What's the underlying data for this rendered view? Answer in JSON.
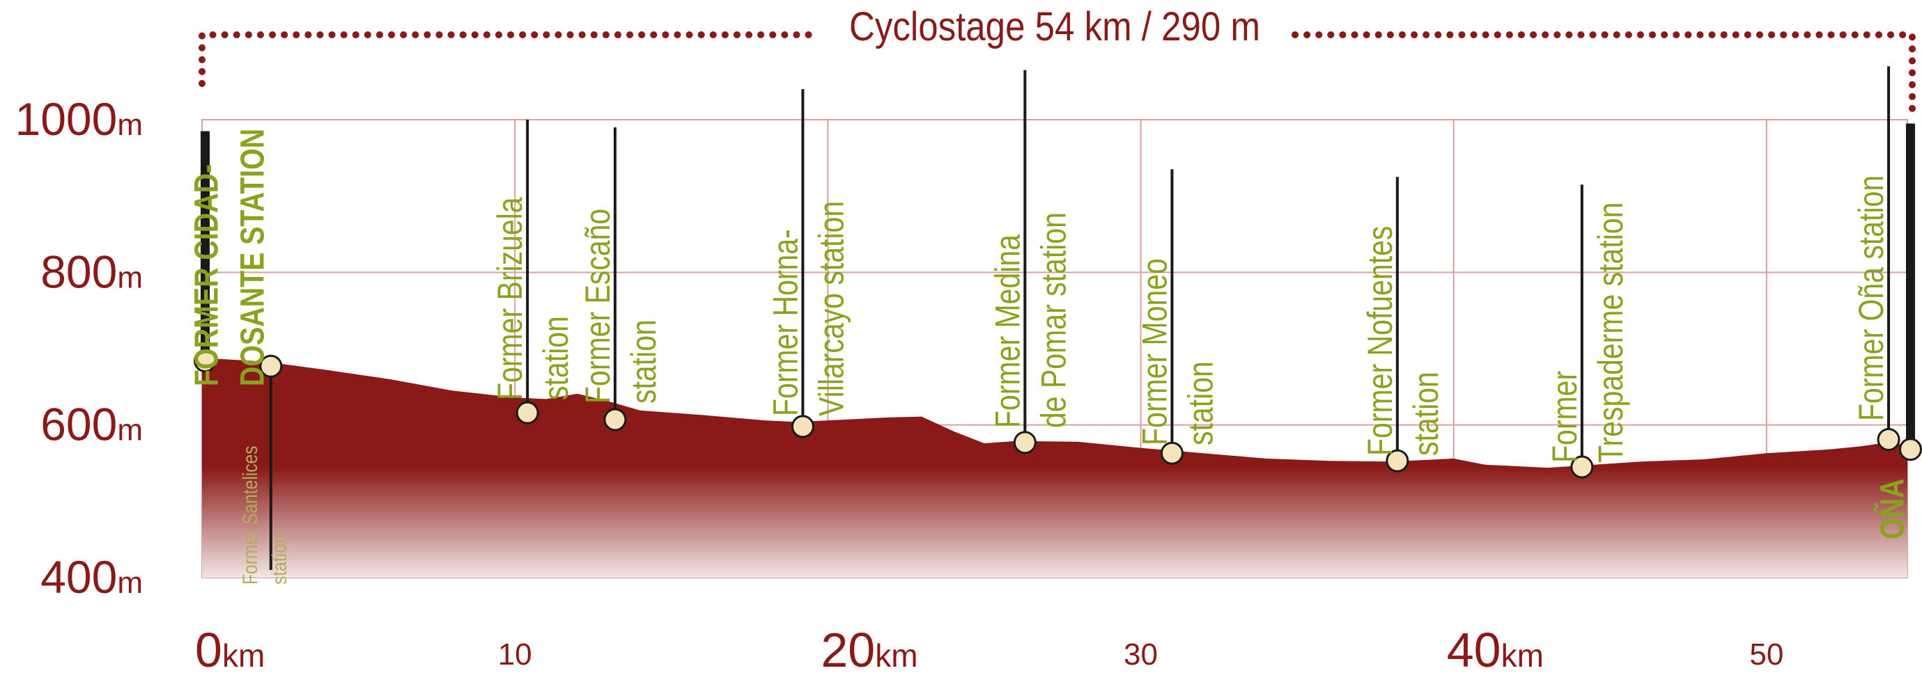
{
  "chart_data": {
    "type": "area",
    "title": "Cyclostage 54 km / 290 m",
    "xlabel": "",
    "ylabel": "",
    "xlim": [
      0,
      54.5
    ],
    "ylim": [
      400,
      1000
    ],
    "colors": {
      "area": "#8a1a17",
      "area_fade": "#f2e6e4",
      "grid": "#d9a0a0",
      "text": "#8a1a17",
      "label": "#8aa31f",
      "stem": "#1a1a1a",
      "marker_fill": "#f5e3bc"
    },
    "grid": true,
    "x_ticks": [
      {
        "value": 0,
        "number": "0",
        "unit": "km"
      },
      {
        "value": 10,
        "number": "10",
        "unit": ""
      },
      {
        "value": 20,
        "number": "20",
        "unit": "km"
      },
      {
        "value": 30,
        "number": "30",
        "unit": ""
      },
      {
        "value": 40,
        "number": "40",
        "unit": "km"
      },
      {
        "value": 50,
        "number": "50",
        "unit": ""
      }
    ],
    "y_ticks": [
      {
        "value": 400,
        "number": "400",
        "unit": "m"
      },
      {
        "value": 600,
        "number": "600",
        "unit": "m"
      },
      {
        "value": 800,
        "number": "800",
        "unit": "m"
      },
      {
        "value": 1000,
        "number": "1000",
        "unit": "m"
      }
    ],
    "profile": [
      [
        0,
        688
      ],
      [
        2,
        683
      ],
      [
        4,
        672
      ],
      [
        6,
        660
      ],
      [
        8,
        645
      ],
      [
        10,
        636
      ],
      [
        11,
        634
      ],
      [
        12,
        641
      ],
      [
        13,
        631
      ],
      [
        14,
        619
      ],
      [
        16,
        613
      ],
      [
        18,
        606
      ],
      [
        19,
        604
      ],
      [
        20,
        606
      ],
      [
        22,
        610
      ],
      [
        23,
        611
      ],
      [
        24,
        592
      ],
      [
        25,
        576
      ],
      [
        26,
        579
      ],
      [
        28,
        578
      ],
      [
        30,
        570
      ],
      [
        32,
        563
      ],
      [
        34,
        556
      ],
      [
        36,
        553
      ],
      [
        38,
        552
      ],
      [
        40,
        556
      ],
      [
        41,
        548
      ],
      [
        43,
        544
      ],
      [
        44.5,
        548
      ],
      [
        46,
        552
      ],
      [
        48,
        555
      ],
      [
        50,
        563
      ],
      [
        52,
        568
      ],
      [
        53,
        572
      ],
      [
        54,
        578
      ],
      [
        54.5,
        572
      ]
    ],
    "annotations": [
      {
        "x": 0.1,
        "elev": 684,
        "top": 985,
        "lines": [
          "FORMER CIDAD-",
          "DOSANTE STATION"
        ],
        "style": "caps",
        "lx": 18,
        "ly": 555,
        "bold": true
      },
      {
        "x": 2.2,
        "elev": 677,
        "top": 410,
        "lines": [
          "Former Santelices",
          "station"
        ],
        "style": "small",
        "lx": -20,
        "ly": 840,
        "bold": false
      },
      {
        "x": 10.4,
        "elev": 616,
        "top": 1000,
        "lines": [
          "Former Brizuela",
          "station"
        ],
        "style": "normal",
        "lx": -8,
        "ly": 575,
        "bold": false
      },
      {
        "x": 13.2,
        "elev": 607,
        "top": 990,
        "lines": [
          "Former Escaño",
          "station"
        ],
        "style": "normal",
        "lx": -8,
        "ly": 580,
        "bold": false
      },
      {
        "x": 19.2,
        "elev": 598,
        "top": 1040,
        "lines": [
          "Former Horna-",
          "Villarcayo station"
        ],
        "style": "normal",
        "lx": -8,
        "ly": 598,
        "bold": false
      },
      {
        "x": 26.3,
        "elev": 577,
        "top": 1065,
        "lines": [
          "Former Medina",
          "de Pomar station"
        ],
        "style": "normal",
        "lx": -8,
        "ly": 615,
        "bold": false
      },
      {
        "x": 31.0,
        "elev": 563,
        "top": 935,
        "lines": [
          "Former Moneo",
          "station"
        ],
        "style": "normal",
        "lx": -8,
        "ly": 640,
        "bold": false
      },
      {
        "x": 38.2,
        "elev": 553,
        "top": 925,
        "lines": [
          "Former Nofuentes",
          "station"
        ],
        "style": "normal",
        "lx": -8,
        "ly": 655,
        "bold": false
      },
      {
        "x": 44.1,
        "elev": 545,
        "top": 915,
        "lines": [
          "Former",
          "Trespaderme station"
        ],
        "style": "normal",
        "lx": -8,
        "ly": 665,
        "bold": false
      },
      {
        "x": 53.9,
        "elev": 581,
        "top": 1070,
        "lines": [
          "Former Oña station"
        ],
        "style": "normal",
        "lx": -8,
        "ly": 605,
        "bold": false
      },
      {
        "x": 54.6,
        "elev": 568,
        "top": 995,
        "lines": [
          "OÑA"
        ],
        "style": "caps",
        "lx": -10,
        "ly": 775,
        "bold": true
      }
    ]
  }
}
